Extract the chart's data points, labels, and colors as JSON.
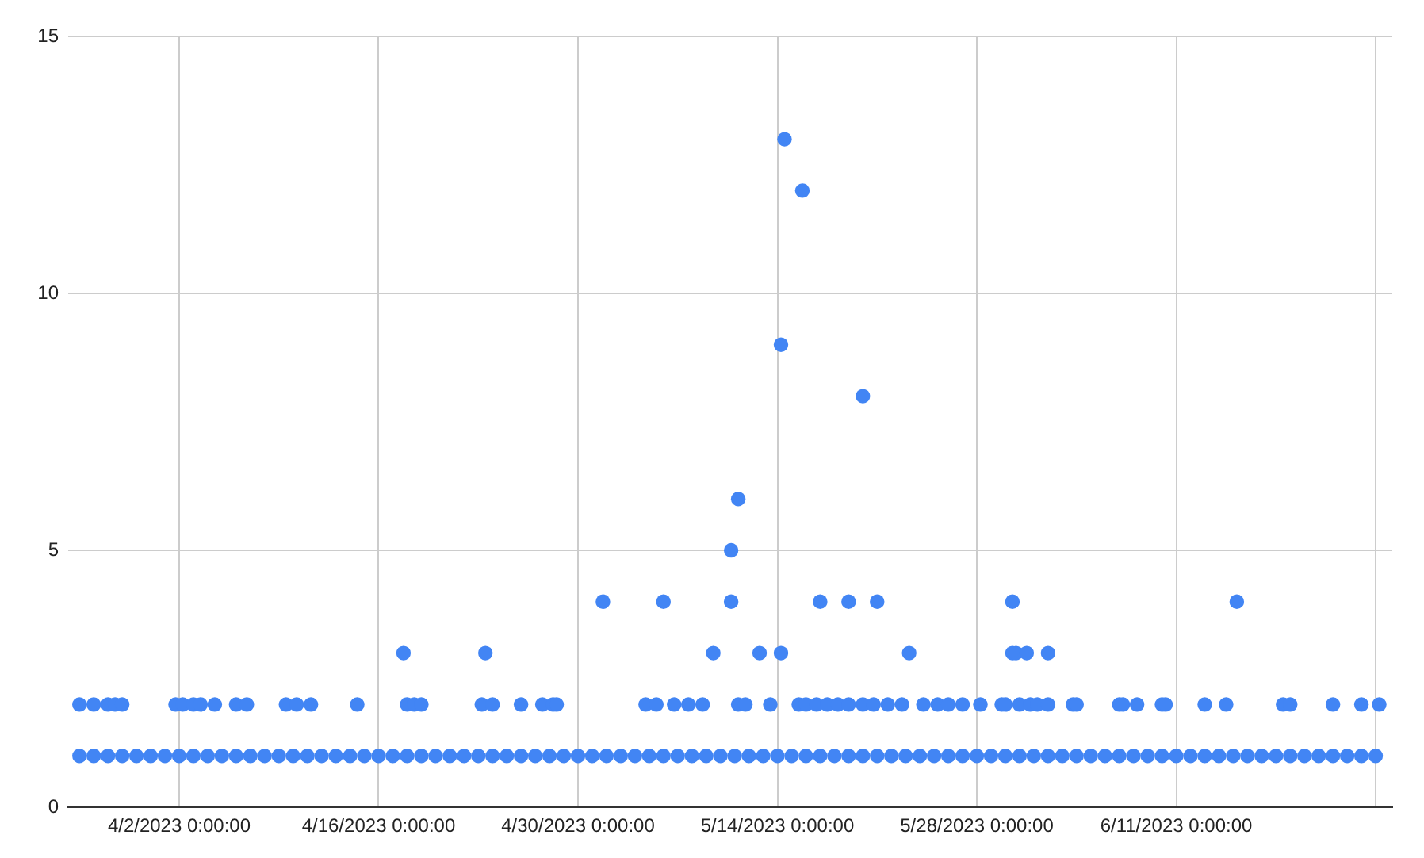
{
  "chart_data": {
    "type": "scatter",
    "color": "#4285f4",
    "marker": "circle",
    "grid": true,
    "xlim": [
      "2023-03-25T05:00",
      "2023-06-26T04:00"
    ],
    "xticks": [
      {
        "value": "2023-04-02",
        "label": "4/2/2023 0:00:00"
      },
      {
        "value": "2023-04-16",
        "label": "4/16/2023 0:00:00"
      },
      {
        "value": "2023-04-30",
        "label": "4/30/2023 0:00:00"
      },
      {
        "value": "2023-05-14",
        "label": "5/14/2023 0:00:00"
      },
      {
        "value": "2023-05-28",
        "label": "5/28/2023 0:00:00"
      },
      {
        "value": "2023-06-11",
        "label": "6/11/2023 0:00:00"
      },
      {
        "value": "2023-06-25",
        "label": null
      }
    ],
    "ylim": [
      0,
      15
    ],
    "yticks": [
      0,
      5,
      10,
      15
    ],
    "x": [
      "2023-03-26",
      "2023-03-27",
      "2023-03-28",
      "2023-03-29",
      "2023-03-30",
      "2023-03-31",
      "2023-04-01",
      "2023-04-02",
      "2023-04-03",
      "2023-04-04",
      "2023-04-05",
      "2023-04-06",
      "2023-04-07",
      "2023-04-08",
      "2023-04-09",
      "2023-04-10",
      "2023-04-11",
      "2023-04-12",
      "2023-04-13",
      "2023-04-14",
      "2023-04-15",
      "2023-04-16",
      "2023-04-17",
      "2023-04-18",
      "2023-04-19",
      "2023-04-20",
      "2023-04-21",
      "2023-04-22",
      "2023-04-23",
      "2023-04-24",
      "2023-04-25",
      "2023-04-26",
      "2023-04-27",
      "2023-04-28",
      "2023-04-29",
      "2023-04-30",
      "2023-05-01",
      "2023-05-02",
      "2023-05-03",
      "2023-05-04",
      "2023-05-05",
      "2023-05-06",
      "2023-05-07",
      "2023-05-08",
      "2023-05-09",
      "2023-05-10",
      "2023-05-11",
      "2023-05-12",
      "2023-05-13",
      "2023-05-14",
      "2023-05-15",
      "2023-05-16",
      "2023-05-17",
      "2023-05-18",
      "2023-05-19",
      "2023-05-20",
      "2023-05-21",
      "2023-05-22",
      "2023-05-23",
      "2023-05-24",
      "2023-05-25",
      "2023-05-26",
      "2023-05-27",
      "2023-05-28",
      "2023-05-29",
      "2023-05-30",
      "2023-05-31",
      "2023-06-01",
      "2023-06-02",
      "2023-06-03",
      "2023-06-04",
      "2023-06-05",
      "2023-06-06",
      "2023-06-07",
      "2023-06-08",
      "2023-06-09",
      "2023-06-10",
      "2023-06-11",
      "2023-06-12",
      "2023-06-13",
      "2023-06-14",
      "2023-06-15",
      "2023-06-16",
      "2023-06-17",
      "2023-06-18",
      "2023-06-19",
      "2023-06-20",
      "2023-06-21",
      "2023-06-22",
      "2023-06-23",
      "2023-06-24",
      "2023-06-25",
      "2023-03-26",
      "2023-03-27",
      "2023-03-28",
      "2023-03-28T12:00",
      "2023-03-29",
      "2023-04-01T18:00",
      "2023-04-02T06:00",
      "2023-04-03",
      "2023-04-03T12:00",
      "2023-04-04T12:00",
      "2023-04-06",
      "2023-04-06T18:00",
      "2023-04-09T12:00",
      "2023-04-10T06:00",
      "2023-04-11T06:00",
      "2023-04-14T12:00",
      "2023-04-18",
      "2023-04-18T12:00",
      "2023-04-19",
      "2023-04-23T06:00",
      "2023-04-24",
      "2023-04-26",
      "2023-04-27T12:00",
      "2023-04-28T06:00",
      "2023-04-28T12:00",
      "2023-05-04T18:00",
      "2023-05-05T12:00",
      "2023-05-06T18:00",
      "2023-05-07T18:00",
      "2023-05-08T18:00",
      "2023-05-11T06:00",
      "2023-05-11T18:00",
      "2023-05-13T12:00",
      "2023-05-15T12:00",
      "2023-05-16",
      "2023-05-16T18:00",
      "2023-05-17T12:00",
      "2023-05-18T06:00",
      "2023-05-19",
      "2023-05-20",
      "2023-05-20T18:00",
      "2023-05-21T18:00",
      "2023-05-22T18:00",
      "2023-05-24T06:00",
      "2023-05-25T06:00",
      "2023-05-26",
      "2023-05-27",
      "2023-05-28T06:00",
      "2023-05-29T18:00",
      "2023-05-30",
      "2023-05-31",
      "2023-05-31T18:00",
      "2023-06-01T06:00",
      "2023-06-02",
      "2023-06-03T18:00",
      "2023-06-04",
      "2023-06-07",
      "2023-06-07T06:00",
      "2023-06-08T06:00",
      "2023-06-10",
      "2023-06-10T06:00",
      "2023-06-13",
      "2023-06-14T12:00",
      "2023-06-18T12:00",
      "2023-06-19",
      "2023-06-22",
      "2023-06-24",
      "2023-06-25T06:00",
      "2023-04-17T18:00",
      "2023-04-23T12:00",
      "2023-05-09T12:00",
      "2023-05-12T18:00",
      "2023-05-14T06:00",
      "2023-05-23T06:00",
      "2023-05-30T12:00",
      "2023-05-30T18:00",
      "2023-05-31T12:00",
      "2023-06-02",
      "2023-05-01T18:00",
      "2023-05-06",
      "2023-05-10T18:00",
      "2023-05-17",
      "2023-05-19",
      "2023-05-21",
      "2023-05-30T12:00",
      "2023-06-15T06:00",
      "2023-05-10T18:00",
      "2023-05-11T06:00",
      "2023-05-20",
      "2023-05-14T06:00",
      "2023-05-15T18:00",
      "2023-05-14T12:00"
    ],
    "values": [
      1,
      1,
      1,
      1,
      1,
      1,
      1,
      1,
      1,
      1,
      1,
      1,
      1,
      1,
      1,
      1,
      1,
      1,
      1,
      1,
      1,
      1,
      1,
      1,
      1,
      1,
      1,
      1,
      1,
      1,
      1,
      1,
      1,
      1,
      1,
      1,
      1,
      1,
      1,
      1,
      1,
      1,
      1,
      1,
      1,
      1,
      1,
      1,
      1,
      1,
      1,
      1,
      1,
      1,
      1,
      1,
      1,
      1,
      1,
      1,
      1,
      1,
      1,
      1,
      1,
      1,
      1,
      1,
      1,
      1,
      1,
      1,
      1,
      1,
      1,
      1,
      1,
      1,
      1,
      1,
      1,
      1,
      1,
      1,
      1,
      1,
      1,
      1,
      1,
      1,
      1,
      1,
      2,
      2,
      2,
      2,
      2,
      2,
      2,
      2,
      2,
      2,
      2,
      2,
      2,
      2,
      2,
      2,
      2,
      2,
      2,
      2,
      2,
      2,
      2,
      2,
      2,
      2,
      2,
      2,
      2,
      2,
      2,
      2,
      2,
      2,
      2,
      2,
      2,
      2,
      2,
      2,
      2,
      2,
      2,
      2,
      2,
      2,
      2,
      2,
      2,
      2,
      2,
      2,
      2,
      2,
      2,
      2,
      2,
      2,
      2,
      2,
      2,
      2,
      2,
      2,
      2,
      2,
      2,
      2,
      3,
      3,
      3,
      3,
      3,
      3,
      3,
      3,
      3,
      3,
      4,
      4,
      4,
      4,
      4,
      4,
      4,
      4,
      5,
      6,
      8,
      9,
      12,
      13
    ]
  }
}
